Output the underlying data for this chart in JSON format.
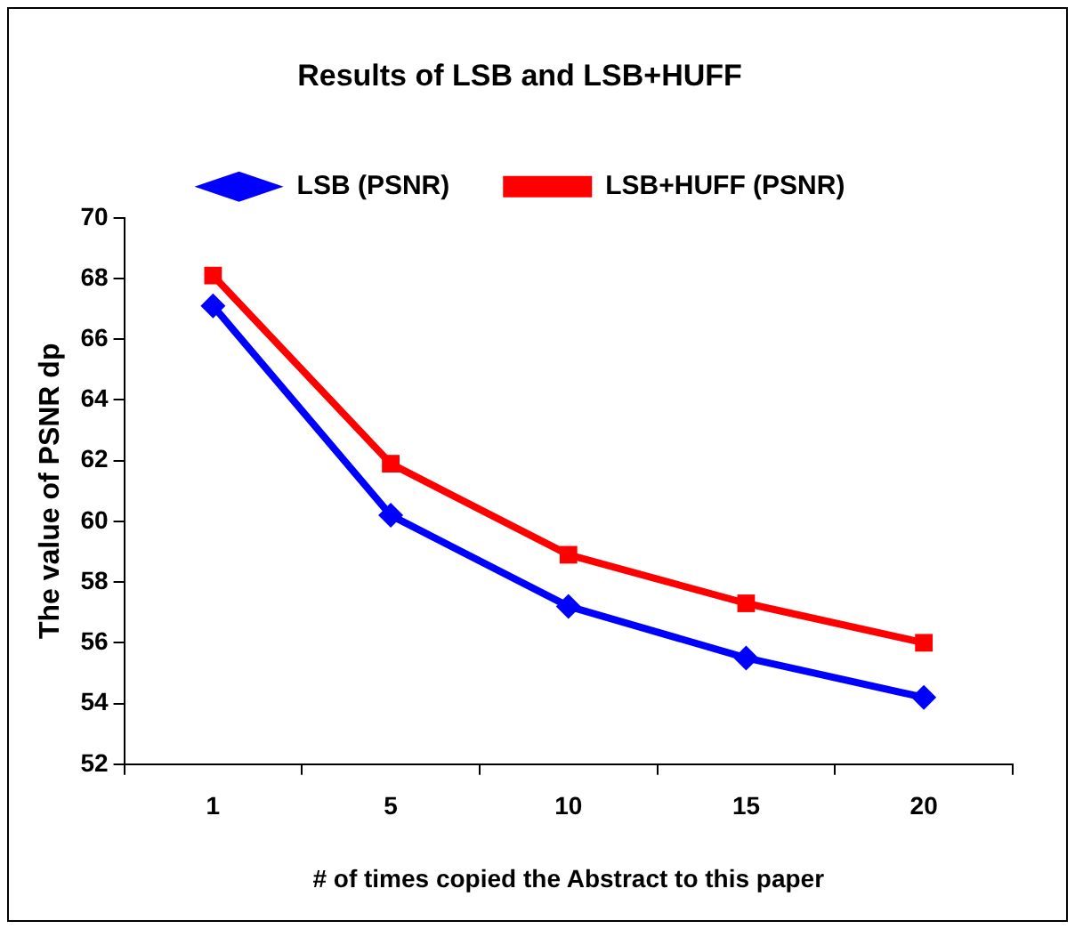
{
  "chart_data": {
    "type": "line",
    "title": "Results of LSB and LSB+HUFF",
    "xlabel": "# of times copied the Abstract to this paper",
    "ylabel": "The value of PSNR dp",
    "categories": [
      "1",
      "5",
      "10",
      "15",
      "20"
    ],
    "series": [
      {
        "name": "LSB (PSNR)",
        "color": "#0000ff",
        "marker": "diamond",
        "values": [
          67.1,
          60.2,
          57.2,
          55.5,
          54.2
        ]
      },
      {
        "name": "LSB+HUFF (PSNR)",
        "color": "#ff0000",
        "marker": "square",
        "values": [
          68.1,
          61.9,
          58.9,
          57.3,
          56.0
        ]
      }
    ],
    "ylim": [
      52,
      70
    ],
    "yticks": [
      52,
      54,
      56,
      58,
      60,
      62,
      64,
      66,
      68,
      70
    ],
    "grid": false,
    "legend": "top",
    "line_style": "solid"
  }
}
